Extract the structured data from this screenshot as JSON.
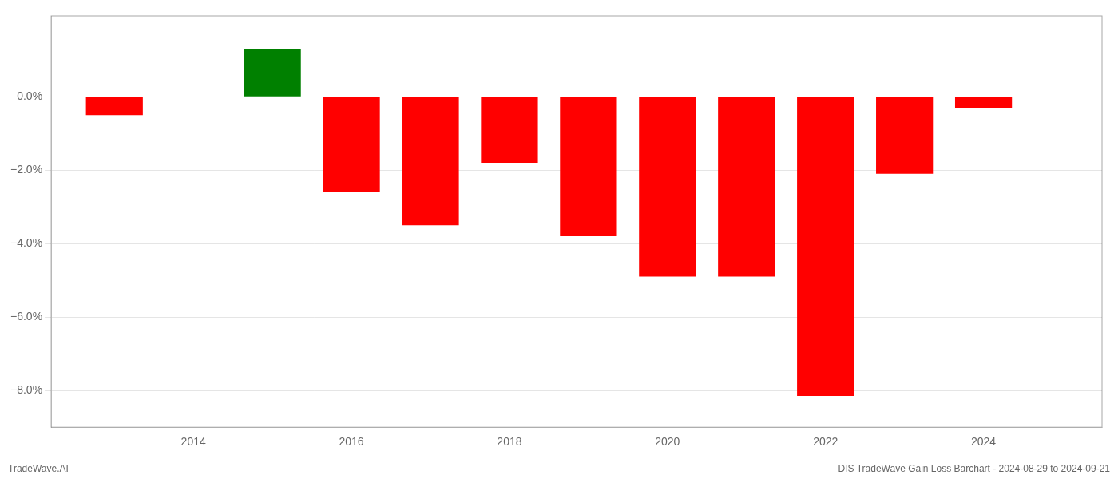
{
  "chart_data": {
    "type": "bar",
    "x": [
      2013,
      2015,
      2016,
      2017,
      2018,
      2019,
      2020,
      2021,
      2022,
      2023,
      2024
    ],
    "values": [
      -0.5,
      1.3,
      -2.6,
      -3.5,
      -1.8,
      -3.8,
      -4.9,
      -4.9,
      -8.15,
      -2.1,
      -0.3
    ],
    "colors": [
      "#ff0000",
      "#008000",
      "#ff0000",
      "#ff0000",
      "#ff0000",
      "#ff0000",
      "#ff0000",
      "#ff0000",
      "#ff0000",
      "#ff0000",
      "#ff0000"
    ],
    "xlim": [
      2012.2,
      2025.5
    ],
    "xticks": [
      2014,
      2016,
      2018,
      2020,
      2022,
      2024
    ],
    "ylim": [
      -9.0,
      2.2
    ],
    "yticks": [
      {
        "value": 0.0,
        "label": "0.0%"
      },
      {
        "value": -2.0,
        "label": "−2.0%"
      },
      {
        "value": -4.0,
        "label": "−4.0%"
      },
      {
        "value": -6.0,
        "label": "−6.0%"
      },
      {
        "value": -8.0,
        "label": "−8.0%"
      }
    ],
    "grid": true,
    "annotations": [
      "TradeWave.AI",
      "DIS TradeWave Gain Loss Barchart - 2024-08-29 to 2024-09-21"
    ]
  }
}
